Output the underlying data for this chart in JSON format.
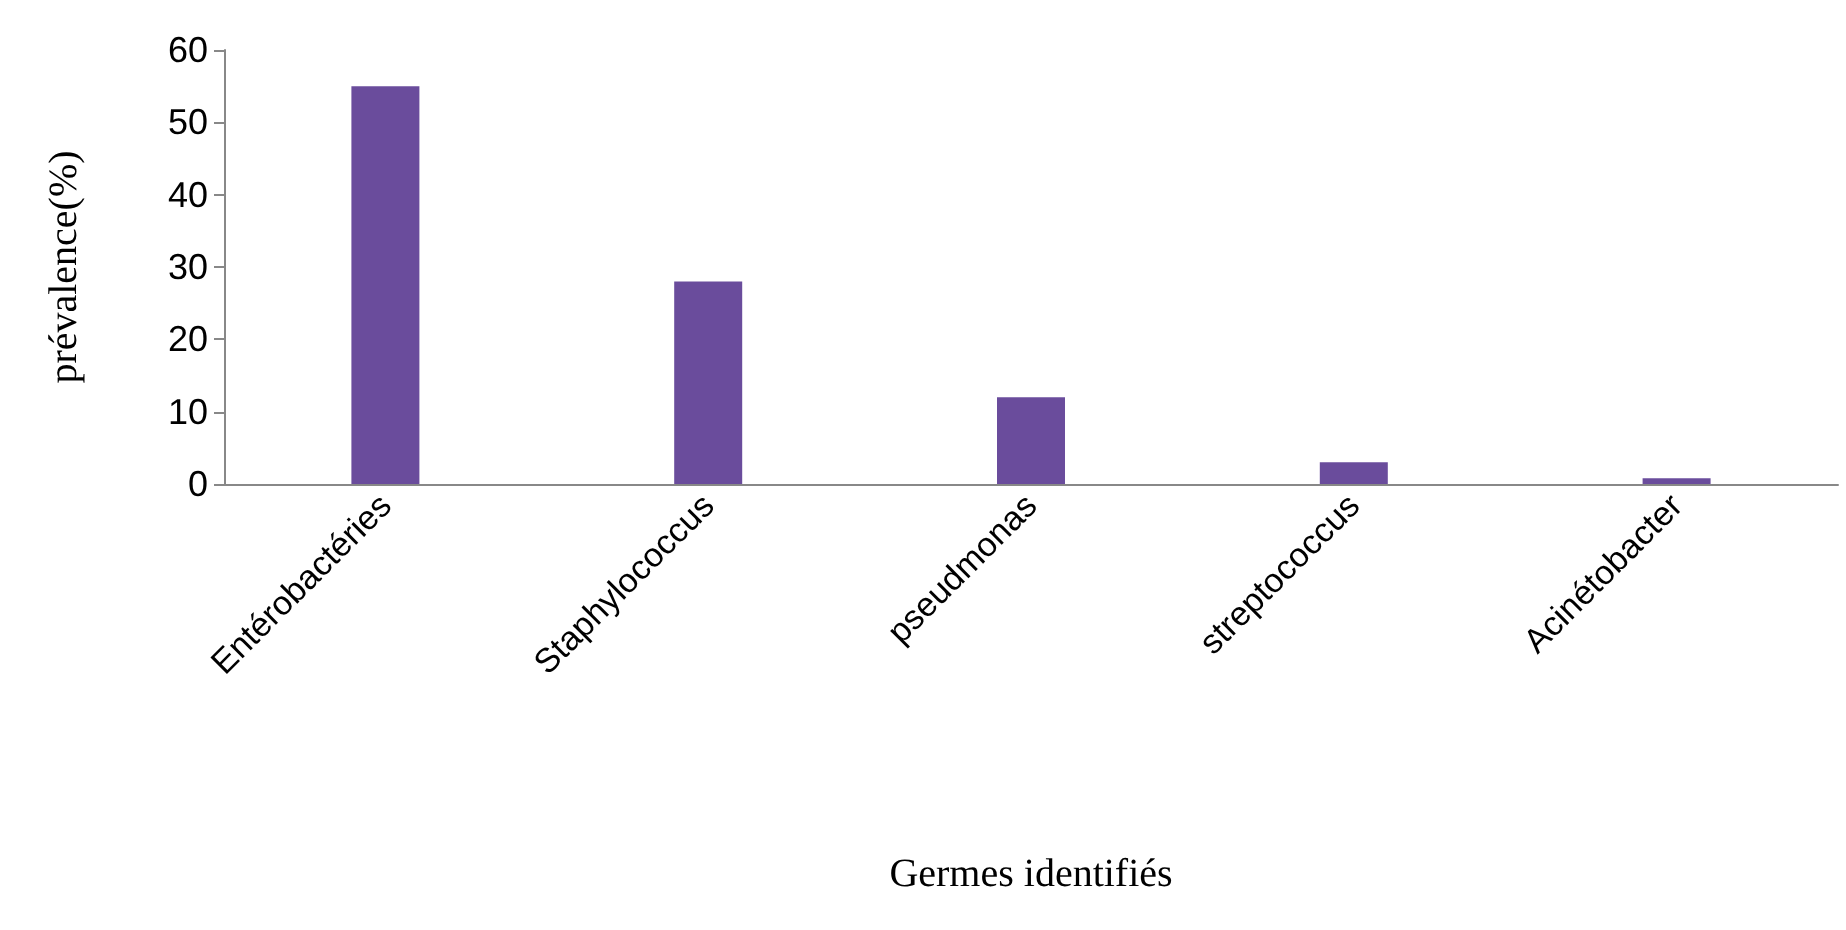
{
  "chart_data": {
    "type": "bar",
    "xlabel": "Germes identifiés",
    "ylabel": "prévalence(%)",
    "categories": [
      "Entérobactéries",
      "Staphylococcus",
      "pseudmonas",
      "streptococcus",
      "Acinétobacter"
    ],
    "values": [
      55,
      28,
      12,
      3,
      0.8
    ],
    "color": "#6a4c9c",
    "ylim": [
      0,
      60
    ],
    "yticks": [
      0,
      10,
      20,
      30,
      40,
      50,
      60
    ],
    "grid": false
  }
}
